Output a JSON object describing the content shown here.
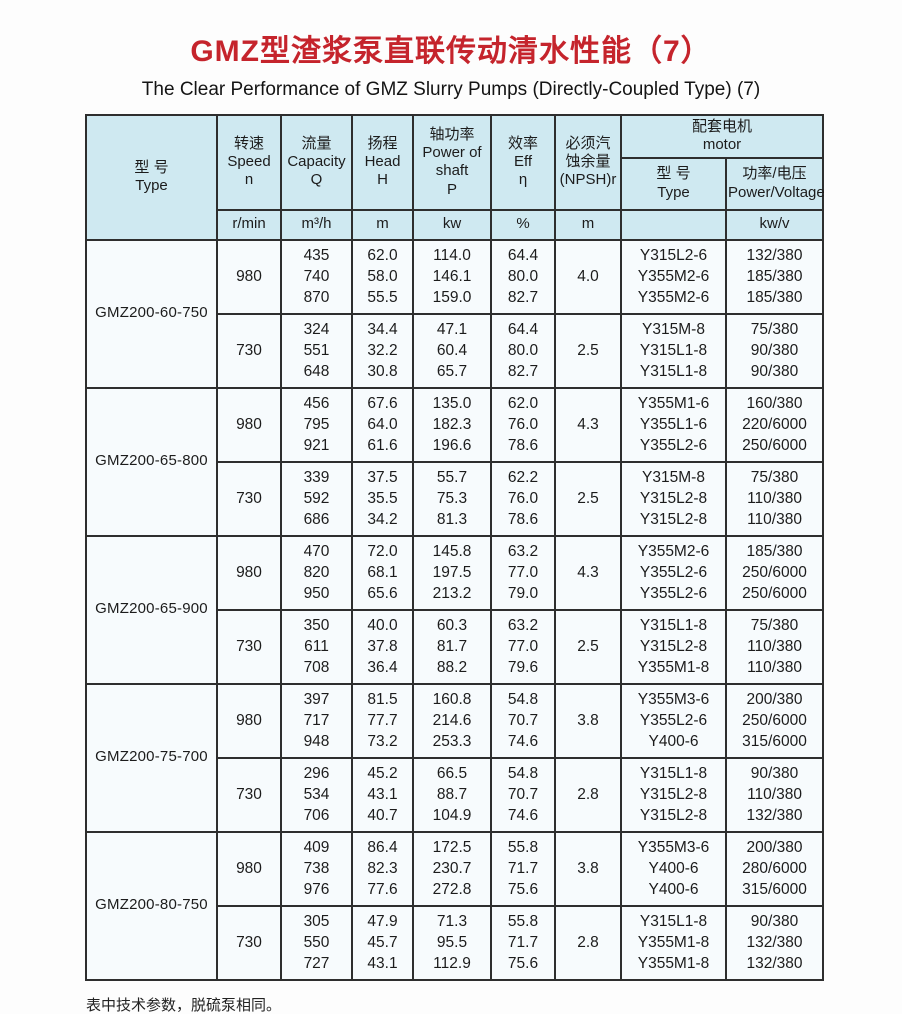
{
  "page": {
    "title_zh": "GMZ型渣浆泵直联传动清水性能（7）",
    "title_en": "The Clear Performance of GMZ Slurry Pumps (Directly-Coupled Type) (7)",
    "footnote": "表中技术参数，脱硫泵相同。"
  },
  "table": {
    "motor_group_label": "配套电机\nmotor",
    "headers": [
      {
        "key": "type",
        "label": "型  号\nType",
        "unit": ""
      },
      {
        "key": "speed",
        "label": "转速\nSpeed\nn",
        "unit": "r/min"
      },
      {
        "key": "capacity",
        "label": "流量\nCapacity\nQ",
        "unit": "m³/h"
      },
      {
        "key": "head",
        "label": "扬程\nHead\nH",
        "unit": "m"
      },
      {
        "key": "power",
        "label": "轴功率\nPower of\nshaft\nP",
        "unit": "kw"
      },
      {
        "key": "eff",
        "label": "效率\nEff\nη",
        "unit": "%"
      },
      {
        "key": "npsh",
        "label": "必须汽\n蚀余量\n(NPSH)r",
        "unit": "m"
      },
      {
        "key": "motor_type",
        "label": "型  号\nType",
        "unit": ""
      },
      {
        "key": "motor_power",
        "label": "功率/电压\nPower/Voltage",
        "unit": "kw/v"
      }
    ],
    "groups": [
      {
        "model": "GMZ200-60-750",
        "rows": [
          {
            "speed": "980",
            "capacity": [
              "435",
              "740",
              "870"
            ],
            "head": [
              "62.0",
              "58.0",
              "55.5"
            ],
            "power": [
              "114.0",
              "146.1",
              "159.0"
            ],
            "eff": [
              "64.4",
              "80.0",
              "82.7"
            ],
            "npsh": "4.0",
            "motor_type": [
              "Y315L2-6",
              "Y355M2-6",
              "Y355M2-6"
            ],
            "motor_power": [
              "132/380",
              "185/380",
              "185/380"
            ]
          },
          {
            "speed": "730",
            "capacity": [
              "324",
              "551",
              "648"
            ],
            "head": [
              "34.4",
              "32.2",
              "30.8"
            ],
            "power": [
              "47.1",
              "60.4",
              "65.7"
            ],
            "eff": [
              "64.4",
              "80.0",
              "82.7"
            ],
            "npsh": "2.5",
            "motor_type": [
              "Y315M-8",
              "Y315L1-8",
              "Y315L1-8"
            ],
            "motor_power": [
              "75/380",
              "90/380",
              "90/380"
            ]
          }
        ]
      },
      {
        "model": "GMZ200-65-800",
        "rows": [
          {
            "speed": "980",
            "capacity": [
              "456",
              "795",
              "921"
            ],
            "head": [
              "67.6",
              "64.0",
              "61.6"
            ],
            "power": [
              "135.0",
              "182.3",
              "196.6"
            ],
            "eff": [
              "62.0",
              "76.0",
              "78.6"
            ],
            "npsh": "4.3",
            "motor_type": [
              "Y355M1-6",
              "Y355L1-6",
              "Y355L2-6"
            ],
            "motor_power": [
              "160/380",
              "220/6000",
              "250/6000"
            ]
          },
          {
            "speed": "730",
            "capacity": [
              "339",
              "592",
              "686"
            ],
            "head": [
              "37.5",
              "35.5",
              "34.2"
            ],
            "power": [
              "55.7",
              "75.3",
              "81.3"
            ],
            "eff": [
              "62.2",
              "76.0",
              "78.6"
            ],
            "npsh": "2.5",
            "motor_type": [
              "Y315M-8",
              "Y315L2-8",
              "Y315L2-8"
            ],
            "motor_power": [
              "75/380",
              "110/380",
              "110/380"
            ]
          }
        ]
      },
      {
        "model": "GMZ200-65-900",
        "rows": [
          {
            "speed": "980",
            "capacity": [
              "470",
              "820",
              "950"
            ],
            "head": [
              "72.0",
              "68.1",
              "65.6"
            ],
            "power": [
              "145.8",
              "197.5",
              "213.2"
            ],
            "eff": [
              "63.2",
              "77.0",
              "79.0"
            ],
            "npsh": "4.3",
            "motor_type": [
              "Y355M2-6",
              "Y355L2-6",
              "Y355L2-6"
            ],
            "motor_power": [
              "185/380",
              "250/6000",
              "250/6000"
            ]
          },
          {
            "speed": "730",
            "capacity": [
              "350",
              "611",
              "708"
            ],
            "head": [
              "40.0",
              "37.8",
              "36.4"
            ],
            "power": [
              "60.3",
              "81.7",
              "88.2"
            ],
            "eff": [
              "63.2",
              "77.0",
              "79.6"
            ],
            "npsh": "2.5",
            "motor_type": [
              "Y315L1-8",
              "Y315L2-8",
              "Y355M1-8"
            ],
            "motor_power": [
              "75/380",
              "110/380",
              "110/380"
            ]
          }
        ]
      },
      {
        "model": "GMZ200-75-700",
        "rows": [
          {
            "speed": "980",
            "capacity": [
              "397",
              "717",
              "948"
            ],
            "head": [
              "81.5",
              "77.7",
              "73.2"
            ],
            "power": [
              "160.8",
              "214.6",
              "253.3"
            ],
            "eff": [
              "54.8",
              "70.7",
              "74.6"
            ],
            "npsh": "3.8",
            "motor_type": [
              "Y355M3-6",
              "Y355L2-6",
              "Y400-6"
            ],
            "motor_power": [
              "200/380",
              "250/6000",
              "315/6000"
            ]
          },
          {
            "speed": "730",
            "capacity": [
              "296",
              "534",
              "706"
            ],
            "head": [
              "45.2",
              "43.1",
              "40.7"
            ],
            "power": [
              "66.5",
              "88.7",
              "104.9"
            ],
            "eff": [
              "54.8",
              "70.7",
              "74.6"
            ],
            "npsh": "2.8",
            "motor_type": [
              "Y315L1-8",
              "Y315L2-8",
              "Y315L2-8"
            ],
            "motor_power": [
              "90/380",
              "110/380",
              "132/380"
            ]
          }
        ]
      },
      {
        "model": "GMZ200-80-750",
        "rows": [
          {
            "speed": "980",
            "capacity": [
              "409",
              "738",
              "976"
            ],
            "head": [
              "86.4",
              "82.3",
              "77.6"
            ],
            "power": [
              "172.5",
              "230.7",
              "272.8"
            ],
            "eff": [
              "55.8",
              "71.7",
              "75.6"
            ],
            "npsh": "3.8",
            "motor_type": [
              "Y355M3-6",
              "Y400-6",
              "Y400-6"
            ],
            "motor_power": [
              "200/380",
              "280/6000",
              "315/6000"
            ]
          },
          {
            "speed": "730",
            "capacity": [
              "305",
              "550",
              "727"
            ],
            "head": [
              "47.9",
              "45.7",
              "43.1"
            ],
            "power": [
              "71.3",
              "95.5",
              "112.9"
            ],
            "eff": [
              "55.8",
              "71.7",
              "75.6"
            ],
            "npsh": "2.8",
            "motor_type": [
              "Y315L1-8",
              "Y355M1-8",
              "Y355M1-8"
            ],
            "motor_power": [
              "90/380",
              "132/380",
              "132/380"
            ]
          }
        ]
      }
    ]
  }
}
